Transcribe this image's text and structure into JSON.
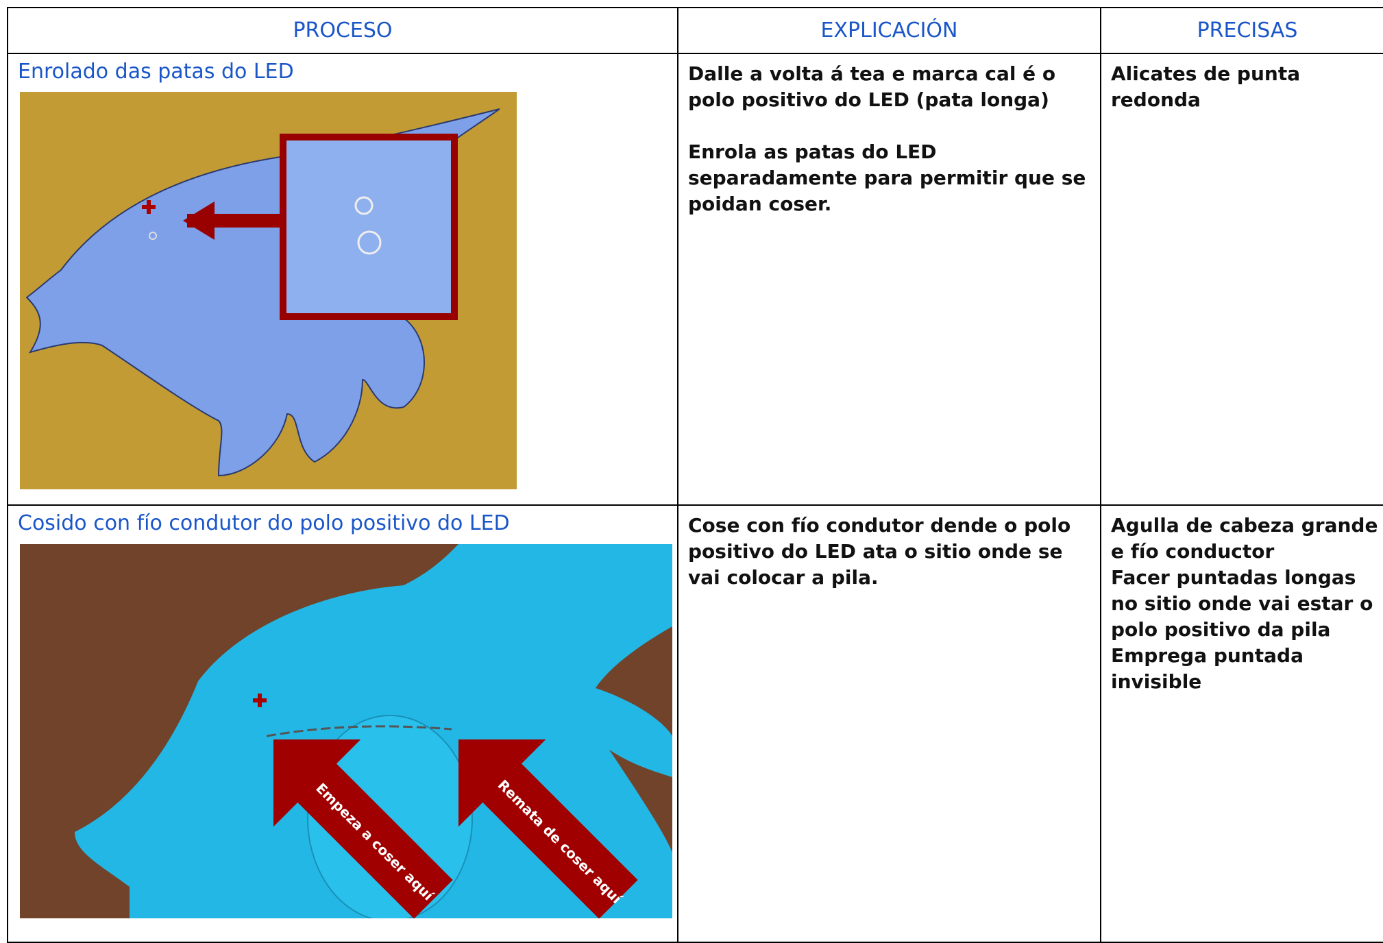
{
  "table": {
    "header": [
      "PROCESO",
      "EXPLICACIÓN",
      "PRECISAS"
    ],
    "rows": [
      {
        "process": "Enrolado das patas do LED",
        "explanation": [
          "Dalle a volta á tea  e marca  cal é o polo positivo do LED (pata longa)",
          "Enrola as patas do LED separadamente para permitir que se poidan coser."
        ],
        "tools": [
          "Alicates de punta redonda"
        ]
      },
      {
        "process": "Cosido con fío condutor do polo positivo do LED",
        "explanation": [
          "Cose con  fío condutor dende o polo positivo do LED ata o sitio onde se vai colocar a pila."
        ],
        "tools": [
          "Agulla de cabeza grande e fío conductor",
          "Facer puntadas longas no sitio onde vai estar o polo positivo da pila",
          "Emprega puntada invisible"
        ],
        "image_labels": [
          "Empeza a coser aquí",
          "Remata de coser aquí"
        ]
      }
    ]
  }
}
